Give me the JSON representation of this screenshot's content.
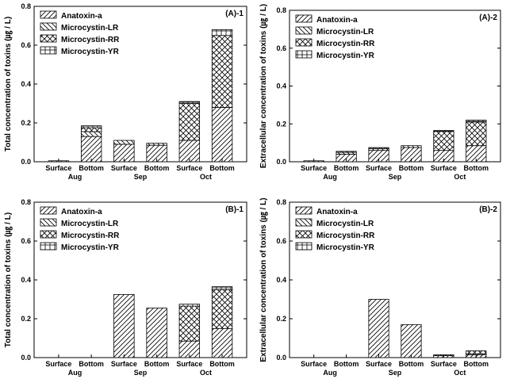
{
  "chart_data": [
    {
      "type": "bar",
      "stacked": true,
      "title": "(A)-1",
      "ylabel": "Total concentration of toxins (㎍ / L)",
      "ylim": [
        0,
        0.8
      ],
      "yticks": [
        "0.0",
        "0.2",
        "0.4",
        "0.6",
        "0.8"
      ],
      "categories": [
        "Surface",
        "Bottom",
        "Surface",
        "Bottom",
        "Surface",
        "Bottom"
      ],
      "groups": [
        "Aug",
        "Sep",
        "Oct"
      ],
      "legend_position": "top-left",
      "series": [
        {
          "name": "Anatoxin-a",
          "values": [
            0.0,
            0.13,
            0.09,
            0.085,
            0.11,
            0.28
          ]
        },
        {
          "name": "Microcystin-LR",
          "values": [
            0.005,
            0.025,
            0.02,
            0.01,
            0.0,
            0.0
          ]
        },
        {
          "name": "Microcystin-RR",
          "values": [
            0.0,
            0.02,
            0.0,
            0.0,
            0.19,
            0.37
          ]
        },
        {
          "name": "Microcystin-YR",
          "values": [
            0.0,
            0.01,
            0.0,
            0.0,
            0.01,
            0.03
          ]
        }
      ]
    },
    {
      "type": "bar",
      "stacked": true,
      "title": "(A)-2",
      "ylabel": "Extracellular concentration of toxins (㎍ / L)",
      "ylim": [
        0,
        0.8
      ],
      "yticks": [
        "0.0",
        "0.2",
        "0.4",
        "0.6",
        "0.8"
      ],
      "categories": [
        "Surface",
        "Bottom",
        "Surface",
        "Bottom",
        "Surface",
        "Bottom"
      ],
      "groups": [
        "Aug",
        "Sep",
        "Oct"
      ],
      "legend_position": "top-left",
      "series": [
        {
          "name": "Anatoxin-a",
          "values": [
            0.0,
            0.04,
            0.06,
            0.075,
            0.06,
            0.085
          ]
        },
        {
          "name": "Microcystin-LR",
          "values": [
            0.005,
            0.01,
            0.01,
            0.01,
            0.0,
            0.0
          ]
        },
        {
          "name": "Microcystin-RR",
          "values": [
            0.0,
            0.005,
            0.005,
            0.0,
            0.1,
            0.125
          ]
        },
        {
          "name": "Microcystin-YR",
          "values": [
            0.0,
            0.0,
            0.0,
            0.0,
            0.005,
            0.01
          ]
        }
      ]
    },
    {
      "type": "bar",
      "stacked": true,
      "title": "(B)-1",
      "ylabel": "Total concentration of toxins (㎍ / L)",
      "ylim": [
        0,
        0.8
      ],
      "yticks": [
        "0.0",
        "0.2",
        "0.4",
        "0.6",
        "0.8"
      ],
      "categories": [
        "Surface",
        "Bottom",
        "Surface",
        "Bottom",
        "Surface",
        "Bottom"
      ],
      "groups": [
        "Aug",
        "Sep",
        "Oct"
      ],
      "legend_position": "top-left",
      "series": [
        {
          "name": "Anatoxin-a",
          "values": [
            0.0,
            0.0,
            0.325,
            0.255,
            0.085,
            0.15
          ]
        },
        {
          "name": "Microcystin-LR",
          "values": [
            0.0,
            0.0,
            0.0,
            0.0,
            0.0,
            0.0
          ]
        },
        {
          "name": "Microcystin-RR",
          "values": [
            0.0,
            0.0,
            0.0,
            0.0,
            0.18,
            0.2
          ]
        },
        {
          "name": "Microcystin-YR",
          "values": [
            0.0,
            0.0,
            0.0,
            0.0,
            0.01,
            0.015
          ]
        }
      ]
    },
    {
      "type": "bar",
      "stacked": true,
      "title": "(B)-2",
      "ylabel": "Extracellular concentration of toxins (㎍ / L)",
      "ylim": [
        0,
        0.8
      ],
      "yticks": [
        "0.0",
        "0.2",
        "0.4",
        "0.6",
        "0.8"
      ],
      "categories": [
        "Surface",
        "Bottom",
        "Surface",
        "Bottom",
        "Surface",
        "Bottom"
      ],
      "groups": [
        "Aug",
        "Sep",
        "Oct"
      ],
      "legend_position": "top-left",
      "series": [
        {
          "name": "Anatoxin-a",
          "values": [
            0.0,
            0.0,
            0.3,
            0.17,
            0.01,
            0.015
          ]
        },
        {
          "name": "Microcystin-LR",
          "values": [
            0.0,
            0.0,
            0.0,
            0.0,
            0.005,
            0.005
          ]
        },
        {
          "name": "Microcystin-RR",
          "values": [
            0.0,
            0.0,
            0.0,
            0.0,
            0.0,
            0.015
          ]
        },
        {
          "name": "Microcystin-YR",
          "values": [
            0.0,
            0.0,
            0.0,
            0.0,
            0.0,
            0.0
          ]
        }
      ]
    }
  ]
}
